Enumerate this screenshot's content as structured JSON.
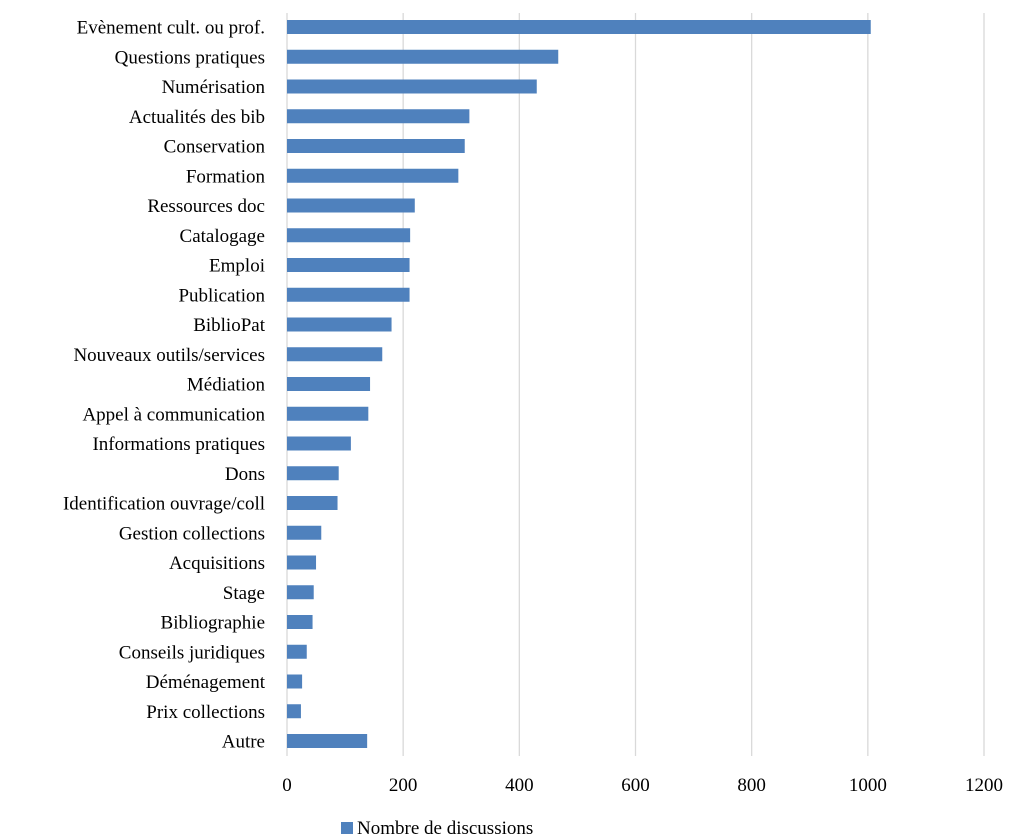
{
  "chart_data": {
    "type": "bar",
    "orientation": "horizontal",
    "categories": [
      "Evènement cult. ou prof.",
      "Questions pratiques",
      "Numérisation",
      "Actualités des bib",
      "Conservation",
      "Formation",
      "Ressources doc",
      "Catalogage",
      "Emploi",
      "Publication",
      "BiblioPat",
      "Nouveaux outils/services",
      "Médiation",
      "Appel à communication",
      "Informations pratiques",
      "Dons",
      "Identification ouvrage/coll",
      "Gestion collections",
      "Acquisitions",
      "Stage",
      "Bibliographie",
      "Conseils juridiques",
      "Déménagement",
      "Prix collections",
      "Autre"
    ],
    "series": [
      {
        "name": "Nombre de discussions",
        "color": "#4f81bd",
        "values": [
          1005,
          467,
          430,
          314,
          306,
          295,
          220,
          212,
          211,
          211,
          180,
          164,
          143,
          140,
          110,
          89,
          87,
          59,
          50,
          46,
          44,
          34,
          26,
          24,
          138
        ]
      }
    ],
    "xlim": [
      0,
      1200
    ],
    "xticks": [
      0,
      200,
      400,
      600,
      800,
      1000,
      1200
    ],
    "grid": true,
    "legend_position": "bottom"
  }
}
